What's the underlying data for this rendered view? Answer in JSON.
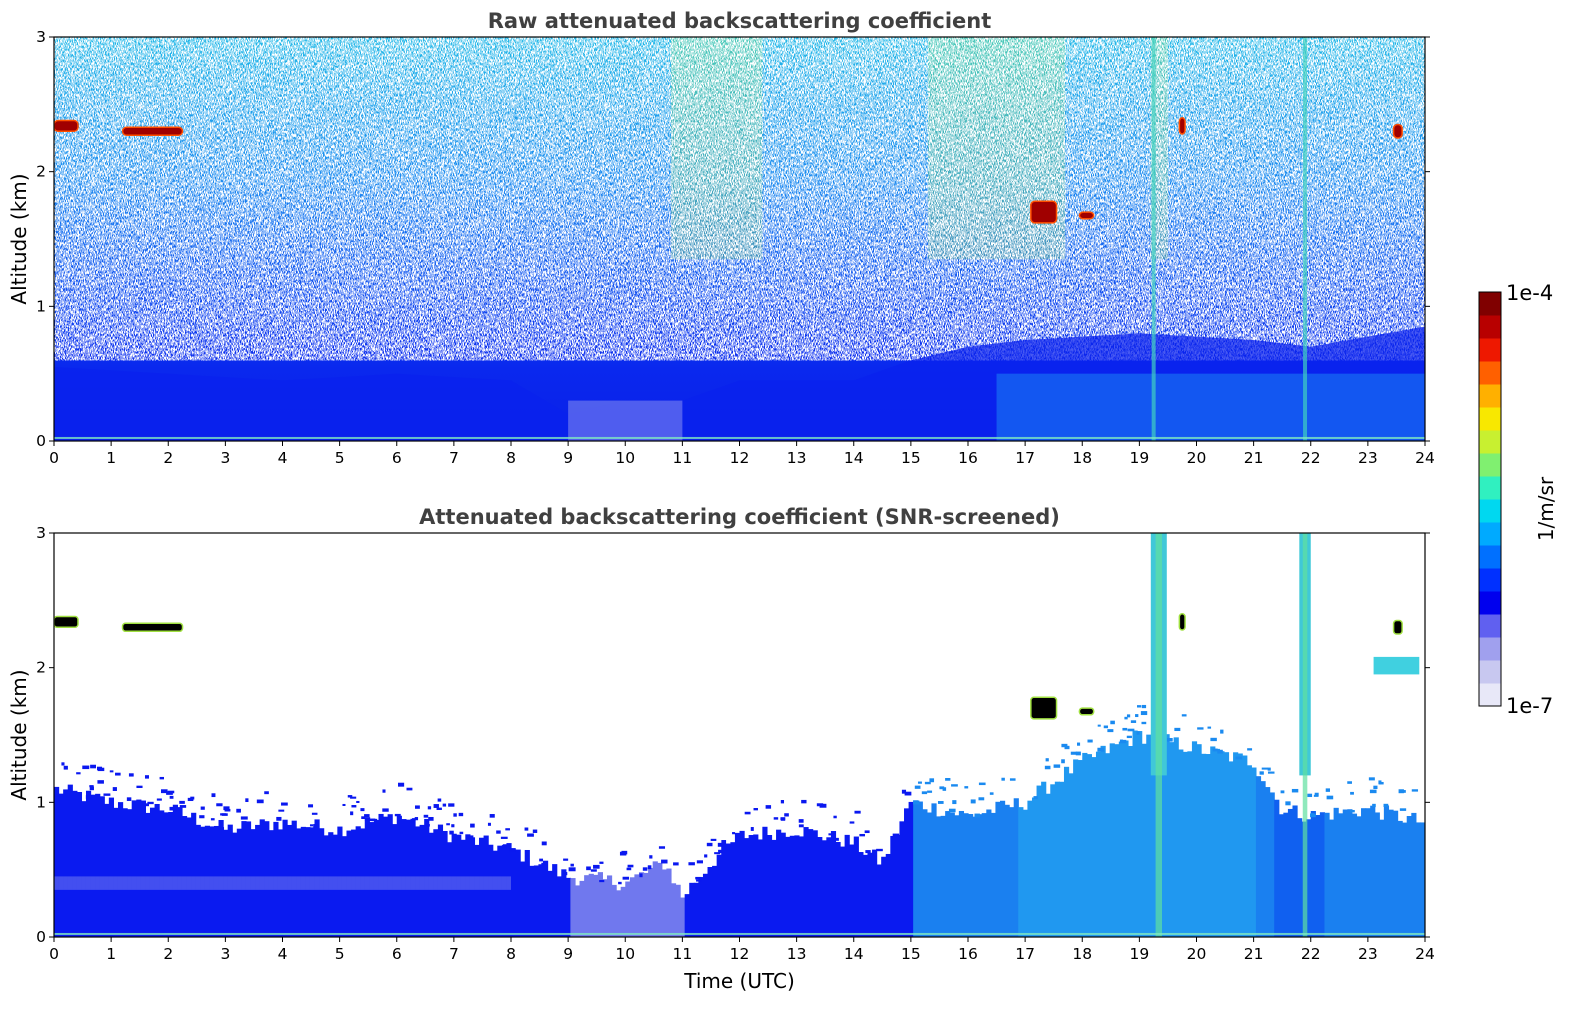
{
  "chart_data": [
    {
      "type": "heatmap",
      "title": "Raw attenuated backscattering coefficient",
      "xlabel": "",
      "ylabel": "Altitude (km)",
      "xlim": [
        0,
        24
      ],
      "ylim": [
        0,
        3
      ],
      "x_ticks": [
        "0",
        "1",
        "2",
        "3",
        "4",
        "5",
        "6",
        "7",
        "8",
        "9",
        "10",
        "11",
        "12",
        "13",
        "14",
        "15",
        "16",
        "17",
        "18",
        "19",
        "20",
        "21",
        "22",
        "23",
        "24"
      ],
      "y_ticks": [
        "0",
        "1",
        "2",
        "3"
      ],
      "features": {
        "boundary_layer_top_km": [
          [
            0,
            0.55
          ],
          [
            2,
            0.5
          ],
          [
            4,
            0.45
          ],
          [
            6,
            0.5
          ],
          [
            8,
            0.45
          ],
          [
            9,
            0.2
          ],
          [
            10,
            0.3
          ],
          [
            11,
            0.3
          ],
          [
            12,
            0.45
          ],
          [
            14,
            0.45
          ],
          [
            15,
            0.6
          ],
          [
            16,
            0.7
          ],
          [
            17,
            0.75
          ],
          [
            19,
            0.8
          ],
          [
            21,
            0.75
          ],
          [
            22,
            0.7
          ],
          [
            24,
            0.85
          ]
        ],
        "clouds": [
          {
            "x": [
              0.0,
              0.42
            ],
            "y": [
              2.3,
              2.38
            ]
          },
          {
            "x": [
              1.2,
              2.25
            ],
            "y": [
              2.27,
              2.33
            ]
          },
          {
            "x": [
              17.1,
              17.55
            ],
            "y": [
              1.62,
              1.78
            ]
          },
          {
            "x": [
              17.95,
              18.2
            ],
            "y": [
              1.65,
              1.7
            ]
          },
          {
            "x": [
              19.7,
              19.8
            ],
            "y": [
              2.28,
              2.4
            ]
          },
          {
            "x": [
              23.45,
              23.6
            ],
            "y": [
              2.25,
              2.35
            ]
          }
        ]
      }
    },
    {
      "type": "heatmap",
      "title": "Attenuated backscattering coefficient (SNR-screened)",
      "xlabel": "Time (UTC)",
      "ylabel": "Altitude (km)",
      "xlim": [
        0,
        24
      ],
      "ylim": [
        0,
        3
      ],
      "x_ticks": [
        "0",
        "1",
        "2",
        "3",
        "4",
        "5",
        "6",
        "7",
        "8",
        "9",
        "10",
        "11",
        "12",
        "13",
        "14",
        "15",
        "16",
        "17",
        "18",
        "19",
        "20",
        "21",
        "22",
        "23",
        "24"
      ],
      "y_ticks": [
        "0",
        "1",
        "2",
        "3"
      ],
      "features": {
        "aerosol_layer_top_km": [
          [
            0,
            1.1
          ],
          [
            1,
            1.0
          ],
          [
            2,
            0.95
          ],
          [
            3,
            0.8
          ],
          [
            4,
            0.85
          ],
          [
            5,
            0.8
          ],
          [
            6,
            0.9
          ],
          [
            7,
            0.75
          ],
          [
            8,
            0.65
          ],
          [
            9,
            0.45
          ],
          [
            10,
            0.4
          ],
          [
            10.7,
            0.55
          ],
          [
            11,
            0.3
          ],
          [
            11.5,
            0.55
          ],
          [
            12,
            0.75
          ],
          [
            13,
            0.8
          ],
          [
            14,
            0.7
          ],
          [
            14.5,
            0.55
          ],
          [
            15,
            1.0
          ],
          [
            16,
            0.9
          ],
          [
            17,
            1.0
          ],
          [
            18,
            1.3
          ],
          [
            19,
            1.5
          ],
          [
            20,
            1.4
          ],
          [
            21,
            1.3
          ],
          [
            21.5,
            0.95
          ],
          [
            22,
            0.9
          ],
          [
            23,
            0.95
          ],
          [
            24,
            0.85
          ]
        ]
      }
    }
  ],
  "colorbar": {
    "label": "1/m/sr",
    "max_label": "1e-4",
    "min_label": "1e-7",
    "colors": [
      "#e8e8f8",
      "#c8c8f0",
      "#a0a0ee",
      "#6060f0",
      "#0000ee",
      "#0030ff",
      "#0070ff",
      "#00aaff",
      "#00d8f0",
      "#30f0c0",
      "#80f070",
      "#c8f030",
      "#f8e800",
      "#ffb000",
      "#ff6000",
      "#ee1800",
      "#b80000",
      "#800000"
    ]
  }
}
